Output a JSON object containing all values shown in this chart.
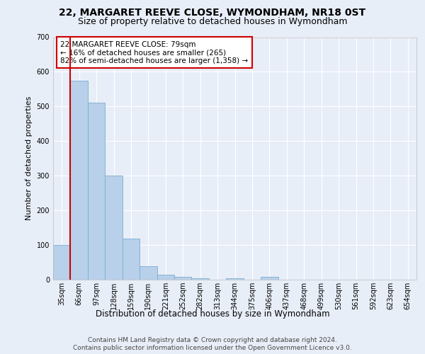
{
  "title1": "22, MARGARET REEVE CLOSE, WYMONDHAM, NR18 0ST",
  "title2": "Size of property relative to detached houses in Wymondham",
  "xlabel": "Distribution of detached houses by size in Wymondham",
  "ylabel": "Number of detached properties",
  "categories": [
    "35sqm",
    "66sqm",
    "97sqm",
    "128sqm",
    "159sqm",
    "190sqm",
    "221sqm",
    "252sqm",
    "282sqm",
    "313sqm",
    "344sqm",
    "375sqm",
    "406sqm",
    "437sqm",
    "468sqm",
    "499sqm",
    "530sqm",
    "561sqm",
    "592sqm",
    "623sqm",
    "654sqm"
  ],
  "values": [
    100,
    575,
    510,
    300,
    118,
    38,
    15,
    8,
    5,
    0,
    5,
    0,
    8,
    0,
    0,
    0,
    0,
    0,
    0,
    0,
    0
  ],
  "bar_color": "#b8d0ea",
  "bar_edge_color": "#7aaed0",
  "vline_color": "#cc0000",
  "annotation_text": "22 MARGARET REEVE CLOSE: 79sqm\n← 16% of detached houses are smaller (265)\n82% of semi-detached houses are larger (1,358) →",
  "annotation_box_color": "#ffffff",
  "annotation_box_edge": "#cc0000",
  "ylim": [
    0,
    700
  ],
  "yticks": [
    0,
    100,
    200,
    300,
    400,
    500,
    600,
    700
  ],
  "footer1": "Contains HM Land Registry data © Crown copyright and database right 2024.",
  "footer2": "Contains public sector information licensed under the Open Government Licence v3.0.",
  "bg_color": "#e8eef8",
  "plot_bg_color": "#e8eef8",
  "grid_color": "#ffffff",
  "title1_fontsize": 10,
  "title2_fontsize": 9,
  "xlabel_fontsize": 8.5,
  "ylabel_fontsize": 8,
  "tick_fontsize": 7,
  "footer_fontsize": 6.5,
  "annot_fontsize": 7.5
}
